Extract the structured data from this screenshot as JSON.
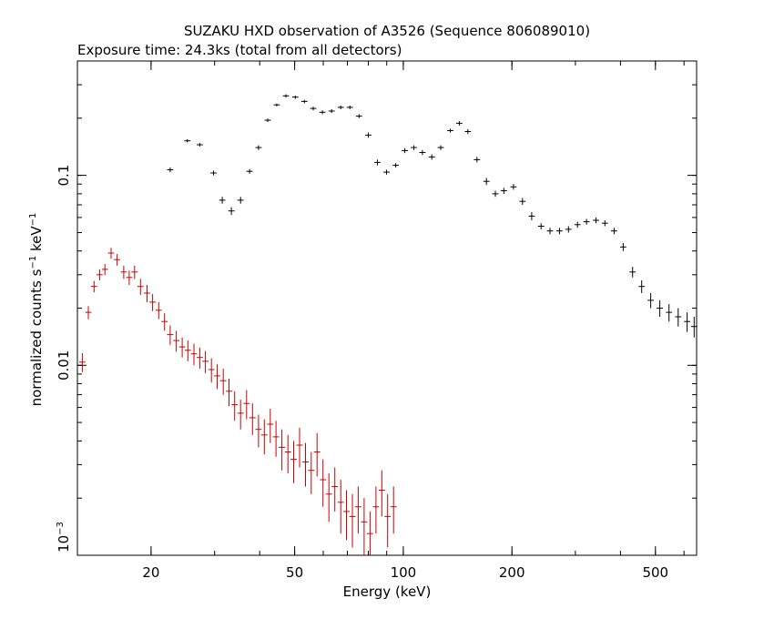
{
  "chart_data": {
    "type": "scatter",
    "title": "SUZAKU HXD observation of A3526 (Sequence 806089010)",
    "subtitle": "Exposure time: 24.3ks (total from all detectors)",
    "xlabel": "Energy (keV)",
    "ylabel": {
      "main": "normalized counts s",
      "exp1": "−1",
      "mid": " keV",
      "exp2": "−1"
    },
    "xscale": "log",
    "yscale": "log",
    "xlim": [
      12.5,
      650
    ],
    "ylim": [
      0.001,
      0.4
    ],
    "xticks": [
      {
        "value": 20,
        "label": "20"
      },
      {
        "value": 50,
        "label": "50"
      },
      {
        "value": 100,
        "label": "100"
      },
      {
        "value": 200,
        "label": "200"
      },
      {
        "value": 500,
        "label": "500"
      }
    ],
    "yticks": [
      {
        "value": 0.001,
        "base": "10",
        "exp": "−3"
      },
      {
        "value": 0.01,
        "label": "0.01"
      },
      {
        "value": 0.1,
        "label": "0.1"
      }
    ],
    "series": [
      {
        "color": "#000000",
        "points": [
          [
            22.6,
            0.107,
            0.003
          ],
          [
            25.2,
            0.152,
            0.003
          ],
          [
            27.3,
            0.145,
            0.003
          ],
          [
            29.8,
            0.103,
            0.003
          ],
          [
            31.5,
            0.074,
            0.003
          ],
          [
            33.4,
            0.065,
            0.003
          ],
          [
            35.4,
            0.074,
            0.003
          ],
          [
            37.5,
            0.105,
            0.003
          ],
          [
            39.7,
            0.14,
            0.004
          ],
          [
            42.1,
            0.195,
            0.004
          ],
          [
            44.6,
            0.235,
            0.004
          ],
          [
            47.3,
            0.262,
            0.005
          ],
          [
            50.2,
            0.258,
            0.005
          ],
          [
            53.2,
            0.245,
            0.005
          ],
          [
            56.3,
            0.225,
            0.005
          ],
          [
            59.7,
            0.215,
            0.005
          ],
          [
            63.3,
            0.218,
            0.005
          ],
          [
            67.1,
            0.228,
            0.005
          ],
          [
            71.1,
            0.228,
            0.005
          ],
          [
            75.4,
            0.205,
            0.005
          ],
          [
            80.0,
            0.163,
            0.005
          ],
          [
            84.8,
            0.117,
            0.004
          ],
          [
            89.9,
            0.104,
            0.003
          ],
          [
            95.3,
            0.113,
            0.003
          ],
          [
            101.0,
            0.135,
            0.004
          ],
          [
            107.0,
            0.14,
            0.004
          ],
          [
            113.0,
            0.132,
            0.004
          ],
          [
            120.0,
            0.125,
            0.004
          ],
          [
            127.0,
            0.14,
            0.004
          ],
          [
            135.0,
            0.172,
            0.004
          ],
          [
            143.0,
            0.188,
            0.005
          ],
          [
            151.0,
            0.17,
            0.005
          ],
          [
            160.0,
            0.121,
            0.004
          ],
          [
            170.0,
            0.093,
            0.004
          ],
          [
            180.0,
            0.08,
            0.003
          ],
          [
            190.0,
            0.083,
            0.003
          ],
          [
            202.0,
            0.087,
            0.003
          ],
          [
            214.0,
            0.073,
            0.003
          ],
          [
            227.0,
            0.061,
            0.003
          ],
          [
            241.0,
            0.054,
            0.002
          ],
          [
            255.0,
            0.051,
            0.002
          ],
          [
            271.0,
            0.051,
            0.002
          ],
          [
            287.0,
            0.052,
            0.002
          ],
          [
            304.0,
            0.055,
            0.002
          ],
          [
            322.0,
            0.057,
            0.002
          ],
          [
            342.0,
            0.058,
            0.002
          ],
          [
            362.0,
            0.056,
            0.002
          ],
          [
            384.0,
            0.051,
            0.002
          ],
          [
            407.0,
            0.042,
            0.002
          ],
          [
            432.0,
            0.031,
            0.002
          ],
          [
            458.0,
            0.026,
            0.002
          ],
          [
            485.0,
            0.022,
            0.002
          ],
          [
            514.0,
            0.02,
            0.002
          ],
          [
            545.0,
            0.019,
            0.002
          ],
          [
            578.0,
            0.018,
            0.002
          ],
          [
            612.0,
            0.017,
            0.002
          ],
          [
            640.0,
            0.016,
            0.002
          ]
        ]
      },
      {
        "color": "#cc0000",
        "points": [
          [
            12.9,
            0.0104,
            0.0012
          ],
          [
            13.4,
            0.019,
            0.0015
          ],
          [
            13.9,
            0.026,
            0.0018
          ],
          [
            14.4,
            0.03,
            0.002
          ],
          [
            14.9,
            0.032,
            0.0022
          ],
          [
            15.5,
            0.039,
            0.0025
          ],
          [
            16.1,
            0.036,
            0.0025
          ],
          [
            16.8,
            0.031,
            0.0025
          ],
          [
            17.4,
            0.029,
            0.0025
          ],
          [
            18.0,
            0.031,
            0.0025
          ],
          [
            18.7,
            0.026,
            0.0025
          ],
          [
            19.5,
            0.024,
            0.0025
          ],
          [
            20.2,
            0.0215,
            0.0022
          ],
          [
            21.0,
            0.0195,
            0.002
          ],
          [
            21.8,
            0.017,
            0.0018
          ],
          [
            22.6,
            0.0145,
            0.0017
          ],
          [
            23.5,
            0.0135,
            0.0017
          ],
          [
            24.4,
            0.0125,
            0.0015
          ],
          [
            25.3,
            0.012,
            0.0015
          ],
          [
            26.3,
            0.0115,
            0.0015
          ],
          [
            27.3,
            0.011,
            0.0014
          ],
          [
            28.3,
            0.0105,
            0.0014
          ],
          [
            29.4,
            0.0095,
            0.0014
          ],
          [
            30.5,
            0.0088,
            0.0013
          ],
          [
            31.7,
            0.0083,
            0.0013
          ],
          [
            32.9,
            0.0073,
            0.0012
          ],
          [
            34.1,
            0.0062,
            0.0011
          ],
          [
            35.4,
            0.0056,
            0.001
          ],
          [
            36.8,
            0.0063,
            0.0011
          ],
          [
            38.2,
            0.0053,
            0.001
          ],
          [
            39.7,
            0.0046,
            0.0009
          ],
          [
            41.2,
            0.0043,
            0.0009
          ],
          [
            42.8,
            0.0049,
            0.001
          ],
          [
            44.4,
            0.0042,
            0.0009
          ],
          [
            46.1,
            0.0037,
            0.0009
          ],
          [
            47.9,
            0.0035,
            0.0008
          ],
          [
            49.7,
            0.0032,
            0.0008
          ],
          [
            51.6,
            0.0038,
            0.0009
          ],
          [
            53.6,
            0.0031,
            0.0008
          ],
          [
            55.6,
            0.0028,
            0.0007
          ],
          [
            57.7,
            0.0035,
            0.0009
          ],
          [
            59.9,
            0.0025,
            0.0007
          ],
          [
            62.2,
            0.0021,
            0.0006
          ],
          [
            64.6,
            0.0023,
            0.0006
          ],
          [
            67.1,
            0.0019,
            0.0006
          ],
          [
            69.6,
            0.0017,
            0.0005
          ],
          [
            72.3,
            0.0016,
            0.0005
          ],
          [
            75.0,
            0.0018,
            0.0005
          ],
          [
            77.9,
            0.0015,
            0.0005
          ],
          [
            80.9,
            0.0013,
            0.0004
          ],
          [
            84.0,
            0.0018,
            0.0005
          ],
          [
            87.2,
            0.0022,
            0.0006
          ],
          [
            90.5,
            0.0016,
            0.0005
          ],
          [
            94.0,
            0.0018,
            0.0005
          ]
        ]
      }
    ]
  }
}
